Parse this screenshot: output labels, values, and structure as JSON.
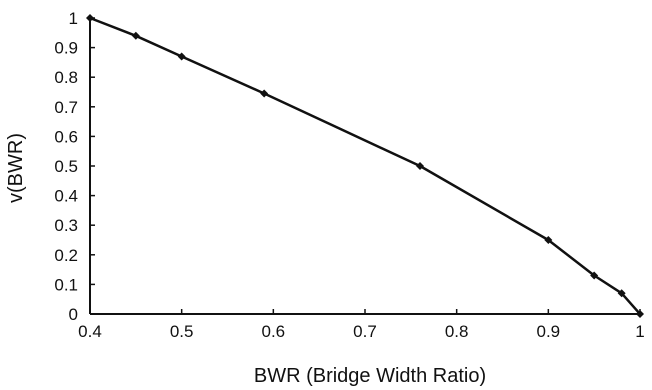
{
  "chart_data": {
    "type": "line",
    "title": "",
    "xlabel": "BWR (Bridge Width Ratio)",
    "ylabel": "v(BWR)",
    "xlim": [
      0.4,
      1.0
    ],
    "ylim": [
      0,
      1
    ],
    "xticks": [
      "0.4",
      "0.5",
      "0.6",
      "0.7",
      "0.8",
      "0.9",
      "1"
    ],
    "yticks": [
      "0",
      "0.1",
      "0.2",
      "0.3",
      "0.4",
      "0.5",
      "0.6",
      "0.7",
      "0.8",
      "0.9",
      "1"
    ],
    "grid": false,
    "legend": "none",
    "series": [
      {
        "x": [
          0.4,
          0.45,
          0.5,
          0.59,
          0.76,
          0.9,
          0.95,
          0.98,
          1.0
        ],
        "y": [
          1.0,
          0.94,
          0.87,
          0.745,
          0.5,
          0.25,
          0.13,
          0.07,
          0.0
        ],
        "color": "#111111",
        "marker": "diamond"
      }
    ]
  }
}
